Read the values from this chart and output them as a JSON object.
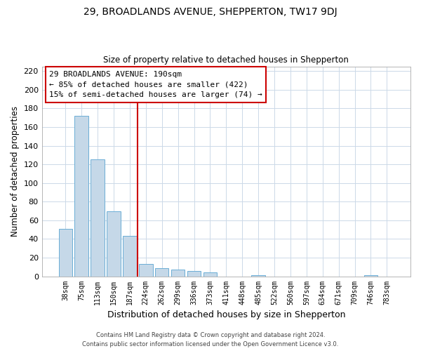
{
  "title": "29, BROADLANDS AVENUE, SHEPPERTON, TW17 9DJ",
  "subtitle": "Size of property relative to detached houses in Shepperton",
  "xlabel": "Distribution of detached houses by size in Shepperton",
  "ylabel": "Number of detached properties",
  "bar_labels": [
    "38sqm",
    "75sqm",
    "113sqm",
    "150sqm",
    "187sqm",
    "224sqm",
    "262sqm",
    "299sqm",
    "336sqm",
    "373sqm",
    "411sqm",
    "448sqm",
    "485sqm",
    "522sqm",
    "560sqm",
    "597sqm",
    "634sqm",
    "671sqm",
    "709sqm",
    "746sqm",
    "783sqm"
  ],
  "bar_heights": [
    51,
    172,
    125,
    70,
    43,
    13,
    9,
    7,
    6,
    4,
    0,
    0,
    1,
    0,
    0,
    0,
    0,
    0,
    0,
    1,
    0
  ],
  "bar_color": "#c5d8e8",
  "bar_edge_color": "#6baed6",
  "vline_x": 4.5,
  "vline_color": "#cc0000",
  "annotation_line1": "29 BROADLANDS AVENUE: 190sqm",
  "annotation_line2": "← 85% of detached houses are smaller (422)",
  "annotation_line3": "15% of semi-detached houses are larger (74) →",
  "annotation_border_color": "#cc0000",
  "ylim": [
    0,
    225
  ],
  "yticks": [
    0,
    20,
    40,
    60,
    80,
    100,
    120,
    140,
    160,
    180,
    200,
    220
  ],
  "footnote1": "Contains HM Land Registry data © Crown copyright and database right 2024.",
  "footnote2": "Contains public sector information licensed under the Open Government Licence v3.0.",
  "background_color": "#ffffff",
  "grid_color": "#ccd9e8"
}
